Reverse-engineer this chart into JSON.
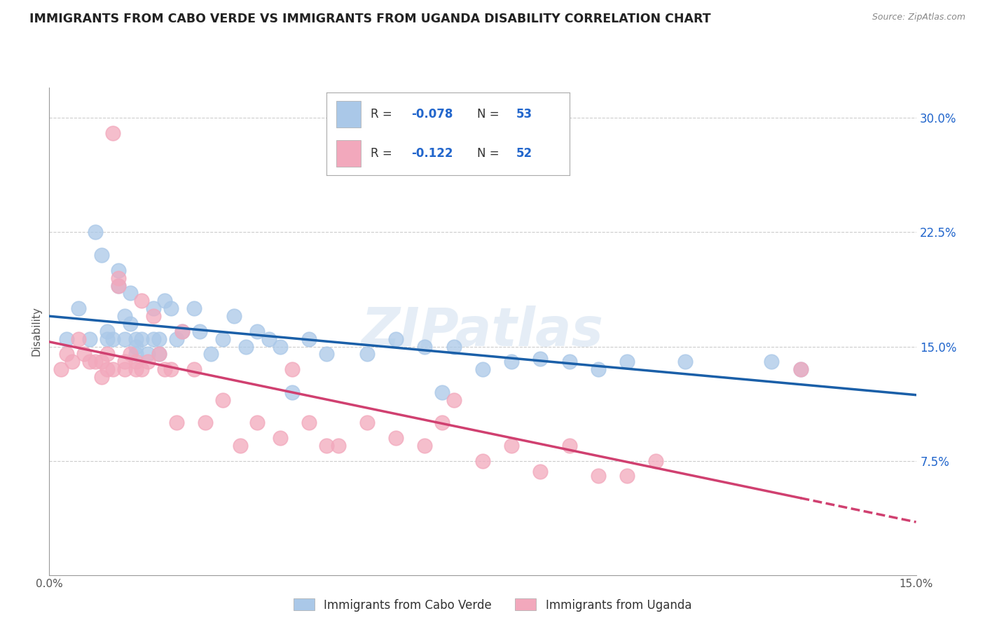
{
  "title": "IMMIGRANTS FROM CABO VERDE VS IMMIGRANTS FROM UGANDA DISABILITY CORRELATION CHART",
  "source": "Source: ZipAtlas.com",
  "ylabel": "Disability",
  "x_min": 0.0,
  "x_max": 0.15,
  "y_min": 0.0,
  "y_max": 0.32,
  "y_ticks": [
    0.075,
    0.15,
    0.225,
    0.3
  ],
  "y_tick_labels": [
    "7.5%",
    "15.0%",
    "22.5%",
    "30.0%"
  ],
  "x_ticks": [
    0.0,
    0.15
  ],
  "x_tick_labels": [
    "0.0%",
    "15.0%"
  ],
  "cabo_verde_R": "-0.078",
  "cabo_verde_N": "53",
  "uganda_R": "-0.122",
  "uganda_N": "52",
  "cabo_verde_color": "#aac8e8",
  "uganda_color": "#f2a8bc",
  "cabo_verde_line_color": "#1a5fa8",
  "uganda_line_color": "#d04070",
  "cabo_verde_points_x": [
    0.003,
    0.005,
    0.007,
    0.008,
    0.009,
    0.01,
    0.01,
    0.011,
    0.012,
    0.012,
    0.013,
    0.013,
    0.014,
    0.014,
    0.015,
    0.015,
    0.015,
    0.016,
    0.017,
    0.018,
    0.018,
    0.019,
    0.019,
    0.02,
    0.021,
    0.022,
    0.023,
    0.025,
    0.026,
    0.028,
    0.03,
    0.032,
    0.034,
    0.036,
    0.038,
    0.04,
    0.042,
    0.045,
    0.048,
    0.055,
    0.06,
    0.065,
    0.068,
    0.07,
    0.075,
    0.08,
    0.085,
    0.09,
    0.095,
    0.1,
    0.11,
    0.125,
    0.13
  ],
  "cabo_verde_points_y": [
    0.155,
    0.175,
    0.155,
    0.225,
    0.21,
    0.16,
    0.155,
    0.155,
    0.2,
    0.19,
    0.17,
    0.155,
    0.185,
    0.165,
    0.155,
    0.15,
    0.145,
    0.155,
    0.145,
    0.175,
    0.155,
    0.155,
    0.145,
    0.18,
    0.175,
    0.155,
    0.16,
    0.175,
    0.16,
    0.145,
    0.155,
    0.17,
    0.15,
    0.16,
    0.155,
    0.15,
    0.12,
    0.155,
    0.145,
    0.145,
    0.155,
    0.15,
    0.12,
    0.15,
    0.135,
    0.14,
    0.142,
    0.14,
    0.135,
    0.14,
    0.14,
    0.14,
    0.135
  ],
  "uganda_points_x": [
    0.002,
    0.003,
    0.004,
    0.005,
    0.006,
    0.007,
    0.008,
    0.009,
    0.009,
    0.01,
    0.01,
    0.011,
    0.011,
    0.012,
    0.012,
    0.013,
    0.013,
    0.014,
    0.015,
    0.015,
    0.016,
    0.016,
    0.017,
    0.018,
    0.019,
    0.02,
    0.021,
    0.022,
    0.023,
    0.025,
    0.027,
    0.03,
    0.033,
    0.036,
    0.04,
    0.042,
    0.045,
    0.048,
    0.05,
    0.055,
    0.06,
    0.065,
    0.068,
    0.07,
    0.075,
    0.08,
    0.085,
    0.09,
    0.095,
    0.1,
    0.105,
    0.13
  ],
  "uganda_points_y": [
    0.135,
    0.145,
    0.14,
    0.155,
    0.145,
    0.14,
    0.14,
    0.14,
    0.13,
    0.145,
    0.135,
    0.135,
    0.29,
    0.195,
    0.19,
    0.135,
    0.14,
    0.145,
    0.135,
    0.14,
    0.135,
    0.18,
    0.14,
    0.17,
    0.145,
    0.135,
    0.135,
    0.1,
    0.16,
    0.135,
    0.1,
    0.115,
    0.085,
    0.1,
    0.09,
    0.135,
    0.1,
    0.085,
    0.085,
    0.1,
    0.09,
    0.085,
    0.1,
    0.115,
    0.075,
    0.085,
    0.068,
    0.085,
    0.065,
    0.065,
    0.075,
    0.135
  ],
  "watermark": "ZIPatlas",
  "background_color": "#ffffff",
  "grid_color": "#cccccc",
  "legend_text_color": "#333333",
  "legend_value_color": "#2266cc",
  "source_color": "#888888"
}
